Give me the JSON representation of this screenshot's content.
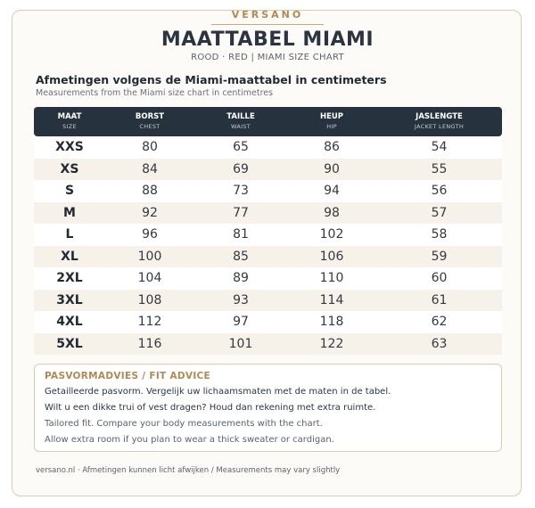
{
  "brand": "VERSANO",
  "title": "MAATTABEL MIAMI",
  "subtitle": "ROOD · RED  |  MIAMI SIZE CHART",
  "heading": "Afmetingen volgens de Miami-maattabel in centimeters",
  "subheading": "Measurements from the Miami size chart in centimetres",
  "table": {
    "columns": [
      {
        "label": "MAAT",
        "sub": "SIZE"
      },
      {
        "label": "BORST",
        "sub": "CHEST"
      },
      {
        "label": "TAILLE",
        "sub": "WAIST"
      },
      {
        "label": "HEUP",
        "sub": "HIP"
      },
      {
        "label": "JASLENGTE",
        "sub": "JACKET LENGTH"
      }
    ],
    "rows": [
      [
        "XXS",
        "80",
        "65",
        "86",
        "54"
      ],
      [
        "XS",
        "84",
        "69",
        "90",
        "55"
      ],
      [
        "S",
        "88",
        "73",
        "94",
        "56"
      ],
      [
        "M",
        "92",
        "77",
        "98",
        "57"
      ],
      [
        "L",
        "96",
        "81",
        "102",
        "58"
      ],
      [
        "XL",
        "100",
        "85",
        "106",
        "59"
      ],
      [
        "2XL",
        "104",
        "89",
        "110",
        "60"
      ],
      [
        "3XL",
        "108",
        "93",
        "114",
        "61"
      ],
      [
        "4XL",
        "112",
        "97",
        "118",
        "62"
      ],
      [
        "5XL",
        "116",
        "101",
        "122",
        "63"
      ]
    ]
  },
  "advice": {
    "title": "PASVORMADVIES / FIT ADVICE",
    "lines": [
      "Getailleerde pasvorm. Vergelijk uw lichaamsmaten met de maten in de tabel.",
      "Wilt u een dikke trui of vest dragen? Houd dan rekening met extra ruimte.",
      "Tailored fit. Compare your body measurements with the chart.",
      "Allow extra room if you plan to wear a thick sweater or cardigan."
    ]
  },
  "footer": "versano.nl  ·  Afmetingen kunnen licht afwijken / Measurements may vary slightly",
  "colors": {
    "header_bg": "#26323d",
    "accent_gold": "#b08a52",
    "stripe": "#f6f1e9",
    "border": "#d9cbb2"
  }
}
